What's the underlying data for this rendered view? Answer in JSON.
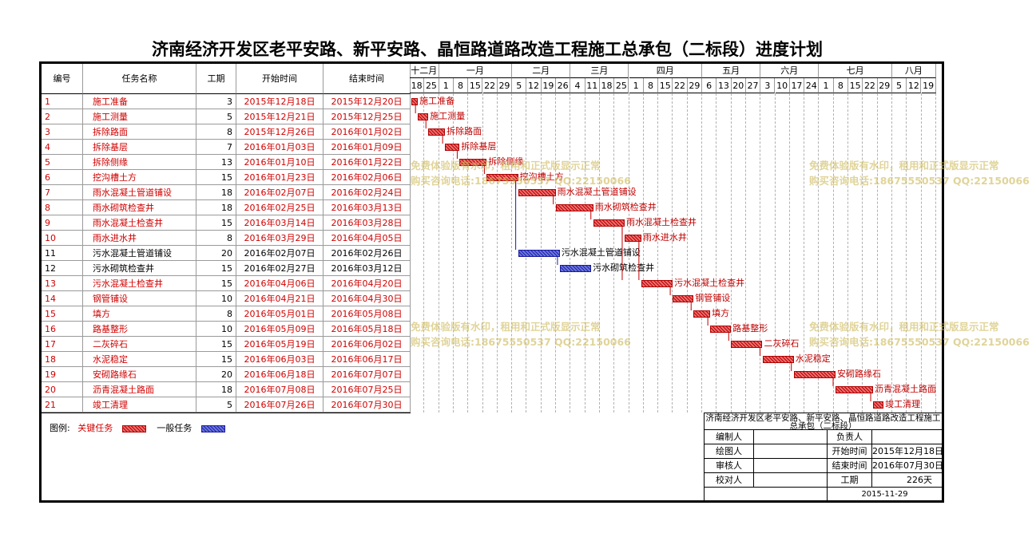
{
  "title": "济南经济开发区老平安路、新平安路、晶恒路道路改造工程施工总承包（二标段）进度计划",
  "headers": {
    "id": "编号",
    "name": "任务名称",
    "duration": "工期",
    "start": "开始时间",
    "end": "结束时间"
  },
  "months": [
    "十二月",
    "一月",
    "二月",
    "三月",
    "四月",
    "五月",
    "六月",
    "七月",
    "八月"
  ],
  "week_days": [
    "18",
    "25",
    "1",
    "8",
    "15",
    "22",
    "29",
    "5",
    "12",
    "19",
    "26",
    "4",
    "11",
    "18",
    "25",
    "1",
    "8",
    "15",
    "22",
    "29",
    "6",
    "13",
    "20",
    "27",
    "3",
    "10",
    "17",
    "24",
    "1",
    "8",
    "15",
    "22",
    "29",
    "5",
    "12",
    "19"
  ],
  "colors": {
    "critical": "#d00000",
    "normal": "#1a1aa0"
  },
  "tasks": [
    {
      "id": "1",
      "name": "施工准备",
      "duration": "3",
      "start": "2015年12月18日",
      "end": "2015年12月20日",
      "critical": true
    },
    {
      "id": "2",
      "name": "施工测量",
      "duration": "5",
      "start": "2015年12月21日",
      "end": "2015年12月25日",
      "critical": true
    },
    {
      "id": "3",
      "name": "拆除路面",
      "duration": "8",
      "start": "2015年12月26日",
      "end": "2016年01月02日",
      "critical": true
    },
    {
      "id": "4",
      "name": "拆除基层",
      "duration": "7",
      "start": "2016年01月03日",
      "end": "2016年01月09日",
      "critical": true
    },
    {
      "id": "5",
      "name": "拆除侧缘",
      "duration": "13",
      "start": "2016年01月10日",
      "end": "2016年01月22日",
      "critical": true
    },
    {
      "id": "6",
      "name": "挖沟槽土方",
      "duration": "15",
      "start": "2016年01月23日",
      "end": "2016年02月06日",
      "critical": true
    },
    {
      "id": "7",
      "name": "雨水混凝土管道铺设",
      "duration": "18",
      "start": "2016年02月07日",
      "end": "2016年02月24日",
      "critical": true
    },
    {
      "id": "8",
      "name": "雨水砌筑检查井",
      "duration": "18",
      "start": "2016年02月25日",
      "end": "2016年03月13日",
      "critical": true
    },
    {
      "id": "9",
      "name": "雨水混凝土检查井",
      "duration": "15",
      "start": "2016年03月14日",
      "end": "2016年03月28日",
      "critical": true
    },
    {
      "id": "10",
      "name": "雨水进水井",
      "duration": "8",
      "start": "2016年03月29日",
      "end": "2016年04月05日",
      "critical": true
    },
    {
      "id": "11",
      "name": "污水混凝土管道铺设",
      "duration": "20",
      "start": "2016年02月07日",
      "end": "2016年02月26日",
      "critical": false
    },
    {
      "id": "12",
      "name": "污水砌筑检查井",
      "duration": "15",
      "start": "2016年02月27日",
      "end": "2016年03月12日",
      "critical": false
    },
    {
      "id": "13",
      "name": "污水混凝土检查井",
      "duration": "15",
      "start": "2016年04月06日",
      "end": "2016年04月20日",
      "critical": true
    },
    {
      "id": "14",
      "name": "钢管铺设",
      "duration": "10",
      "start": "2016年04月21日",
      "end": "2016年04月30日",
      "critical": true
    },
    {
      "id": "15",
      "name": "填方",
      "duration": "8",
      "start": "2016年05月01日",
      "end": "2016年05月08日",
      "critical": true
    },
    {
      "id": "16",
      "name": "路基整形",
      "duration": "10",
      "start": "2016年05月09日",
      "end": "2016年05月18日",
      "critical": true
    },
    {
      "id": "17",
      "name": "二灰碎石",
      "duration": "15",
      "start": "2016年05月19日",
      "end": "2016年06月02日",
      "critical": true
    },
    {
      "id": "18",
      "name": "水泥稳定",
      "duration": "15",
      "start": "2016年06月03日",
      "end": "2016年06月17日",
      "critical": true
    },
    {
      "id": "19",
      "name": "安砌路缘石",
      "duration": "20",
      "start": "2016年06月18日",
      "end": "2016年07月07日",
      "critical": true
    },
    {
      "id": "20",
      "name": "沥青混凝土路面",
      "duration": "18",
      "start": "2016年07月08日",
      "end": "2016年07月25日",
      "critical": true
    },
    {
      "id": "21",
      "name": "竣工清理",
      "duration": "5",
      "start": "2016年07月26日",
      "end": "2016年07月30日",
      "critical": true
    }
  ],
  "gantt_tasks": [
    {
      "label": "施工准备",
      "start_day": 0,
      "duration": 3,
      "critical": true
    },
    {
      "label": "施工测量",
      "start_day": 3,
      "duration": 5,
      "critical": true
    },
    {
      "label": "拆除路面",
      "start_day": 8,
      "duration": 8,
      "critical": true
    },
    {
      "label": "拆除基层",
      "start_day": 16,
      "duration": 7,
      "critical": true
    },
    {
      "label": "拆除侧缘",
      "start_day": 23,
      "duration": 13,
      "critical": true
    },
    {
      "label": "挖沟槽土方",
      "start_day": 36,
      "duration": 15,
      "critical": true
    },
    {
      "label": "雨水混凝土管道铺设",
      "start_day": 51,
      "duration": 18,
      "critical": true
    },
    {
      "label": "雨水砌筑检查井",
      "start_day": 69,
      "duration": 18,
      "critical": true
    },
    {
      "label": "雨水混凝土检查井",
      "start_day": 87,
      "duration": 15,
      "critical": true
    },
    {
      "label": "雨水进水井",
      "start_day": 102,
      "duration": 8,
      "critical": true
    },
    {
      "label": "污水混凝土管道铺设",
      "start_day": 51,
      "duration": 20,
      "critical": false
    },
    {
      "label": "污水砌筑检查井",
      "start_day": 71,
      "duration": 15,
      "critical": false
    },
    {
      "label": "污水混凝土检查井",
      "start_day": 110,
      "duration": 15,
      "critical": true
    },
    {
      "label": "钢管铺设",
      "start_day": 125,
      "duration": 10,
      "critical": true
    },
    {
      "label": "填方",
      "start_day": 135,
      "duration": 8,
      "critical": true
    },
    {
      "label": "路基整形",
      "start_day": 143,
      "duration": 10,
      "critical": true
    },
    {
      "label": "二灰碎石",
      "start_day": 153,
      "duration": 15,
      "critical": true
    },
    {
      "label": "水泥稳定",
      "start_day": 168,
      "duration": 15,
      "critical": true
    },
    {
      "label": "安砌路缘石",
      "start_day": 183,
      "duration": 20,
      "critical": true
    },
    {
      "label": "沥青混凝土路面",
      "start_day": 203,
      "duration": 18,
      "critical": true
    },
    {
      "label": "竣工清理",
      "start_day": 221,
      "duration": 5,
      "critical": true
    }
  ],
  "watermark": {
    "line1": "免费体验版有水印，租用和正式版显示正常",
    "line2": "购买咨询电话:18675550537 QQ:22150066"
  },
  "legend": {
    "label": "图例:",
    "critical": "关键任务",
    "normal": "一般任务"
  },
  "info": {
    "project": "济南经济开发区老平安路、新平安路、晶恒路道路改造工程施工总承包（二标段）",
    "editor": "编制人",
    "responsible": "负责人",
    "drawer": "绘图人",
    "start_label": "开始时间",
    "start_value": "2015年12月18日",
    "reviewer": "审核人",
    "end_label": "结束时间",
    "end_value": "2016年07月30日",
    "checker": "校对人",
    "duration_label": "工期",
    "duration_value": "226天",
    "date": "2015-11-29"
  }
}
